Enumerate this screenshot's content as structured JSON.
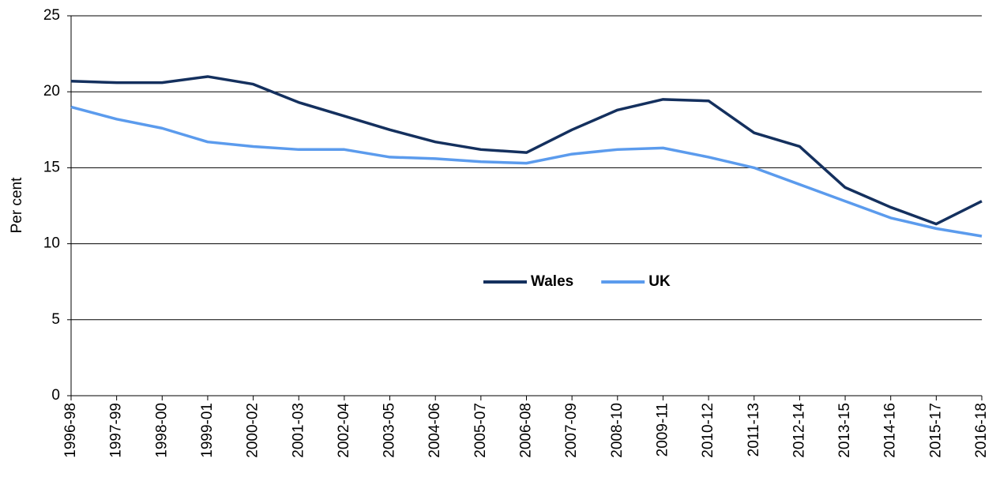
{
  "chart_data": {
    "type": "line",
    "y_label": "Per cent",
    "categories": [
      "1996-98",
      "1997-99",
      "1998-00",
      "1999-01",
      "2000-02",
      "2001-03",
      "2002-04",
      "2003-05",
      "2004-06",
      "2005-07",
      "2006-08",
      "2007-09",
      "2008-10",
      "2009-11",
      "2010-12",
      "2011-13",
      "2012-14",
      "2013-15",
      "2014-16",
      "2015-17",
      "2016-18"
    ],
    "series": [
      {
        "name": "Wales",
        "color": "#14305e",
        "values": [
          20.7,
          20.6,
          20.6,
          21.0,
          20.5,
          19.3,
          18.4,
          17.5,
          16.7,
          16.2,
          16.0,
          17.5,
          18.8,
          19.5,
          19.4,
          17.3,
          16.4,
          13.7,
          12.4,
          11.3,
          12.8
        ]
      },
      {
        "name": "UK",
        "color": "#5b9bed",
        "values": [
          19.0,
          18.2,
          17.6,
          16.7,
          16.4,
          16.2,
          16.2,
          15.7,
          15.6,
          15.4,
          15.3,
          15.9,
          16.2,
          16.3,
          15.7,
          15.0,
          13.9,
          12.8,
          11.7,
          11.0,
          10.5
        ]
      }
    ],
    "ylim": [
      0,
      25
    ],
    "yticks": [
      0,
      5,
      10,
      15,
      20,
      25
    ],
    "grid": true,
    "legend": "center"
  }
}
